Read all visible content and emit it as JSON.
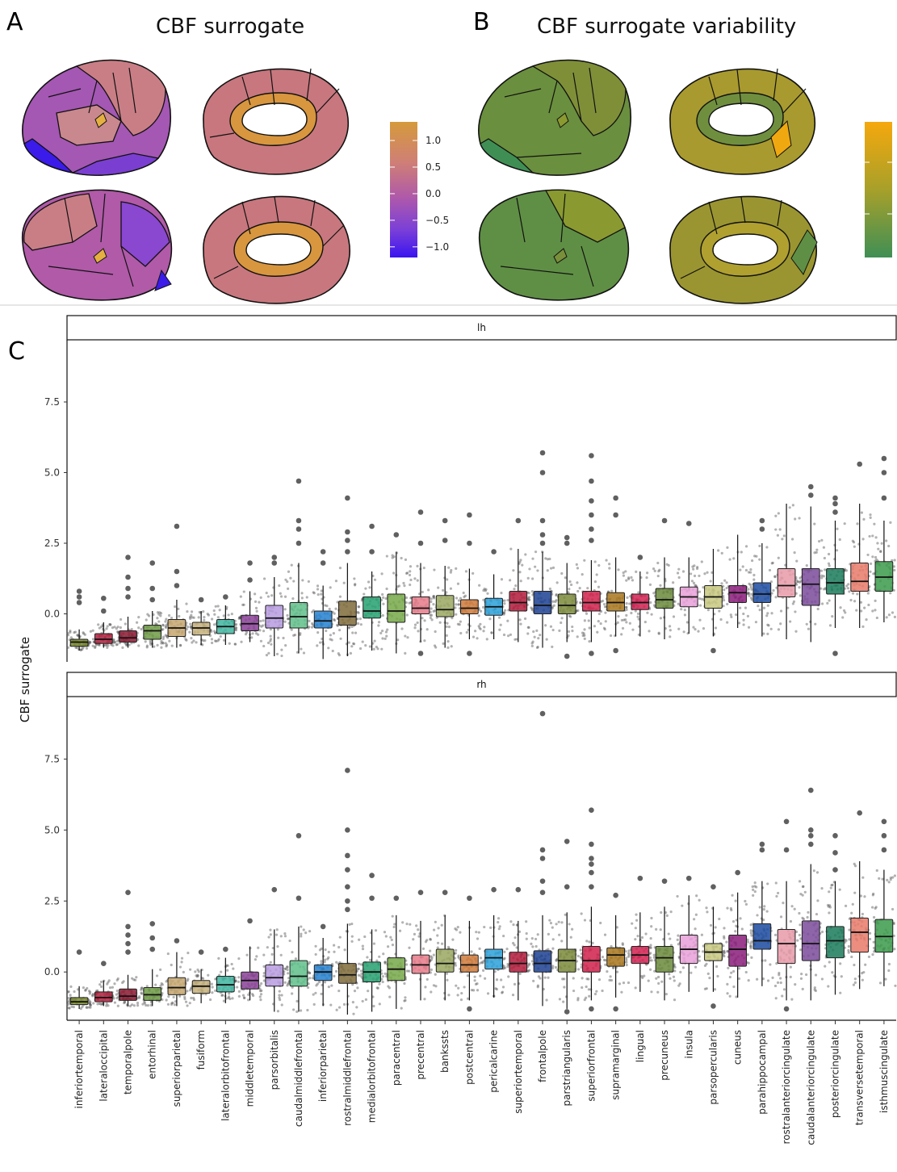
{
  "panels": {
    "A": {
      "letter": "A",
      "title": "CBF surrogate"
    },
    "B": {
      "letter": "B",
      "title": "CBF surrogate variability"
    },
    "C": {
      "letter": "C"
    }
  },
  "colorbars": {
    "A": {
      "ticks": [
        "1.0",
        "0.5",
        "0.0",
        "−0.5",
        "−1.0"
      ],
      "colors": [
        "#d59a3b",
        "#cf7f76",
        "#b05aa8",
        "#7a3fd8",
        "#3a14f0"
      ]
    },
    "B": {
      "ticks": [],
      "colors": [
        "#f5a80d",
        "#a7a02a",
        "#3f8f55"
      ]
    }
  },
  "chart_data": {
    "type": "box",
    "ylabel": "CBF surrogate",
    "yticks": [
      0.0,
      2.5,
      5.0,
      7.5
    ],
    "ytick_labels": [
      "0.0",
      "2.5",
      "5.0",
      "7.5"
    ],
    "ylim": [
      -1.7,
      9.7
    ],
    "categories": [
      "inferiortemporal",
      "lateraloccipital",
      "temporalpole",
      "entorhinal",
      "superiorparietal",
      "fusiform",
      "lateralorbitofrontal",
      "middletemporal",
      "parsorbitalis",
      "caudalmiddlefrontal",
      "inferiorparietal",
      "rostralmiddlefrontal",
      "medialorbitofrontal",
      "paracentral",
      "precentral",
      "bankssts",
      "postcentral",
      "pericalcarine",
      "superiortemporal",
      "frontalpole",
      "parstriangularis",
      "superiorfrontal",
      "supramarginal",
      "lingual",
      "precuneus",
      "insula",
      "parsopercularis",
      "cuneus",
      "parahippocampal",
      "rostralanteriorcingulate",
      "caudalanteriorcingulate",
      "posteriorcingulate",
      "transversetemporal",
      "isthmuscingulate"
    ],
    "colors": [
      "#7a8b2e",
      "#b01e3c",
      "#8a1830",
      "#6f9a45",
      "#c6a66e",
      "#c6b07a",
      "#3fb5a0",
      "#8a3f96",
      "#b79be0",
      "#5fc08a",
      "#2480d0",
      "#7f6a3a",
      "#24a070",
      "#76a848",
      "#e87a8a",
      "#9aa860",
      "#d07a3a",
      "#2aa0d8",
      "#b01a3a",
      "#1c3f90",
      "#7a8a3a",
      "#d0204a",
      "#a8761c",
      "#d02050",
      "#6a8a3a",
      "#e8a0d8",
      "#c8c880",
      "#8a1c7a",
      "#1a4aa0",
      "#e89aa8",
      "#7a4a9a",
      "#1a7a5a",
      "#e87a6a",
      "#3a9a4a"
    ],
    "panels": [
      {
        "strip": "lh",
        "boxes": [
          {
            "q1": -1.15,
            "med": -1.0,
            "q3": -0.9,
            "lo": -1.3,
            "hi": -0.55,
            "out": [
              0.8,
              0.6,
              0.4
            ]
          },
          {
            "q1": -1.05,
            "med": -0.9,
            "q3": -0.7,
            "lo": -1.2,
            "hi": -0.3,
            "out": [
              0.55,
              0.1
            ]
          },
          {
            "q1": -1.0,
            "med": -0.85,
            "q3": -0.6,
            "lo": -1.2,
            "hi": -0.1,
            "out": [
              2.0,
              1.3,
              0.9,
              0.6
            ]
          },
          {
            "q1": -0.9,
            "med": -0.6,
            "q3": -0.4,
            "lo": -1.2,
            "hi": 0.1,
            "out": [
              1.8,
              0.9,
              0.5
            ]
          },
          {
            "q1": -0.8,
            "med": -0.5,
            "q3": -0.2,
            "lo": -1.2,
            "hi": 0.5,
            "out": [
              3.1,
              1.5,
              1.0
            ]
          },
          {
            "q1": -0.75,
            "med": -0.5,
            "q3": -0.3,
            "lo": -1.1,
            "hi": 0.1,
            "out": [
              0.5
            ]
          },
          {
            "q1": -0.7,
            "med": -0.45,
            "q3": -0.2,
            "lo": -1.1,
            "hi": 0.3,
            "out": [
              0.6
            ]
          },
          {
            "q1": -0.6,
            "med": -0.35,
            "q3": -0.05,
            "lo": -1.0,
            "hi": 0.8,
            "out": [
              1.8,
              1.2
            ]
          },
          {
            "q1": -0.5,
            "med": -0.15,
            "q3": 0.3,
            "lo": -1.5,
            "hi": 1.3,
            "out": [
              2.0,
              1.8
            ]
          },
          {
            "q1": -0.5,
            "med": -0.1,
            "q3": 0.4,
            "lo": -1.4,
            "hi": 1.8,
            "out": [
              4.7,
              3.3,
              3.0,
              2.5
            ]
          },
          {
            "q1": -0.5,
            "med": -0.25,
            "q3": 0.1,
            "lo": -1.6,
            "hi": 1.0,
            "out": [
              2.2,
              1.8
            ]
          },
          {
            "q1": -0.4,
            "med": -0.1,
            "q3": 0.45,
            "lo": -1.5,
            "hi": 1.8,
            "out": [
              4.1,
              2.9,
              2.6,
              2.2
            ]
          },
          {
            "q1": -0.15,
            "med": 0.1,
            "q3": 0.6,
            "lo": -1.3,
            "hi": 1.5,
            "out": [
              3.1,
              2.2
            ]
          },
          {
            "q1": -0.3,
            "med": 0.1,
            "q3": 0.7,
            "lo": -1.4,
            "hi": 2.2,
            "out": [
              2.8
            ]
          },
          {
            "q1": 0.0,
            "med": 0.2,
            "q3": 0.6,
            "lo": -1.0,
            "hi": 1.8,
            "out": [
              3.6,
              2.5,
              -1.4
            ]
          },
          {
            "q1": -0.1,
            "med": 0.15,
            "q3": 0.65,
            "lo": -1.2,
            "hi": 1.7,
            "out": [
              3.3,
              2.6
            ]
          },
          {
            "q1": 0.0,
            "med": 0.2,
            "q3": 0.5,
            "lo": -0.9,
            "hi": 1.6,
            "out": [
              3.5,
              2.5,
              -1.4
            ]
          },
          {
            "q1": -0.05,
            "med": 0.25,
            "q3": 0.55,
            "lo": -0.9,
            "hi": 1.4,
            "out": [
              2.2
            ]
          },
          {
            "q1": 0.1,
            "med": 0.4,
            "q3": 0.8,
            "lo": -1.0,
            "hi": 2.3,
            "out": [
              3.3
            ]
          },
          {
            "q1": 0.0,
            "med": 0.3,
            "q3": 0.8,
            "lo": -1.2,
            "hi": 2.2,
            "out": [
              5.7,
              5.0,
              3.3,
              2.8,
              2.5
            ]
          },
          {
            "q1": 0.0,
            "med": 0.3,
            "q3": 0.7,
            "lo": -1.0,
            "hi": 1.8,
            "out": [
              2.7,
              2.5,
              -1.5
            ]
          },
          {
            "q1": 0.1,
            "med": 0.4,
            "q3": 0.8,
            "lo": -1.0,
            "hi": 1.9,
            "out": [
              5.6,
              4.7,
              4.0,
              3.5,
              3.0,
              2.6,
              -1.4
            ]
          },
          {
            "q1": 0.1,
            "med": 0.4,
            "q3": 0.75,
            "lo": -0.8,
            "hi": 2.0,
            "out": [
              4.1,
              3.5,
              -1.3
            ]
          },
          {
            "q1": 0.15,
            "med": 0.4,
            "q3": 0.7,
            "lo": -0.8,
            "hi": 1.5,
            "out": [
              2.0
            ]
          },
          {
            "q1": 0.2,
            "med": 0.5,
            "q3": 0.9,
            "lo": -0.9,
            "hi": 2.0,
            "out": [
              3.3
            ]
          },
          {
            "q1": 0.25,
            "med": 0.6,
            "q3": 0.95,
            "lo": -0.7,
            "hi": 2.0,
            "out": [
              3.2
            ]
          },
          {
            "q1": 0.2,
            "med": 0.6,
            "q3": 1.0,
            "lo": -0.8,
            "hi": 2.3,
            "out": [
              -1.3
            ]
          },
          {
            "q1": 0.4,
            "med": 0.75,
            "q3": 1.0,
            "lo": -0.5,
            "hi": 2.8,
            "out": []
          },
          {
            "q1": 0.4,
            "med": 0.7,
            "q3": 1.1,
            "lo": -0.8,
            "hi": 2.5,
            "out": [
              3.3,
              3.0
            ]
          },
          {
            "q1": 0.6,
            "med": 1.0,
            "q3": 1.6,
            "lo": -0.9,
            "hi": 3.9,
            "out": []
          },
          {
            "q1": 0.3,
            "med": 1.05,
            "q3": 1.6,
            "lo": -1.0,
            "hi": 3.8,
            "out": [
              4.5,
              4.2
            ]
          },
          {
            "q1": 0.7,
            "med": 1.1,
            "q3": 1.6,
            "lo": -0.5,
            "hi": 3.3,
            "out": [
              4.1,
              3.9,
              3.6,
              -1.4
            ]
          },
          {
            "q1": 0.8,
            "med": 1.15,
            "q3": 1.8,
            "lo": -0.5,
            "hi": 3.9,
            "out": [
              5.3
            ]
          },
          {
            "q1": 0.8,
            "med": 1.3,
            "q3": 1.85,
            "lo": -0.3,
            "hi": 3.3,
            "out": [
              5.5,
              5.0,
              4.1
            ]
          }
        ]
      },
      {
        "strip": "rh",
        "boxes": [
          {
            "q1": -1.15,
            "med": -1.05,
            "q3": -0.9,
            "lo": -1.3,
            "hi": -0.5,
            "out": [
              0.7
            ]
          },
          {
            "q1": -1.05,
            "med": -0.9,
            "q3": -0.7,
            "lo": -1.2,
            "hi": -0.3,
            "out": [
              0.3
            ]
          },
          {
            "q1": -1.0,
            "med": -0.85,
            "q3": -0.6,
            "lo": -1.2,
            "hi": -0.1,
            "out": [
              2.8,
              1.6,
              1.3,
              1.0,
              0.7
            ]
          },
          {
            "q1": -1.0,
            "med": -0.8,
            "q3": -0.55,
            "lo": -1.2,
            "hi": 0.1,
            "out": [
              1.7,
              1.2,
              0.8
            ]
          },
          {
            "q1": -0.8,
            "med": -0.55,
            "q3": -0.2,
            "lo": -1.2,
            "hi": 0.7,
            "out": [
              1.1
            ]
          },
          {
            "q1": -0.75,
            "med": -0.5,
            "q3": -0.3,
            "lo": -1.1,
            "hi": 0.1,
            "out": [
              0.7
            ]
          },
          {
            "q1": -0.7,
            "med": -0.45,
            "q3": -0.15,
            "lo": -1.1,
            "hi": 0.5,
            "out": [
              0.8
            ]
          },
          {
            "q1": -0.6,
            "med": -0.3,
            "q3": 0.0,
            "lo": -1.0,
            "hi": 0.9,
            "out": [
              1.8
            ]
          },
          {
            "q1": -0.5,
            "med": -0.2,
            "q3": 0.25,
            "lo": -1.4,
            "hi": 1.5,
            "out": [
              2.9
            ]
          },
          {
            "q1": -0.5,
            "med": -0.15,
            "q3": 0.4,
            "lo": -1.4,
            "hi": 1.6,
            "out": [
              4.8,
              2.6
            ]
          },
          {
            "q1": -0.3,
            "med": 0.0,
            "q3": 0.25,
            "lo": -1.2,
            "hi": 1.2,
            "out": [
              1.6
            ]
          },
          {
            "q1": -0.4,
            "med": -0.1,
            "q3": 0.3,
            "lo": -1.5,
            "hi": 1.7,
            "out": [
              7.1,
              5.0,
              4.1,
              3.6,
              3.0,
              2.5,
              2.2
            ]
          },
          {
            "q1": -0.35,
            "med": 0.0,
            "q3": 0.35,
            "lo": -1.4,
            "hi": 1.5,
            "out": [
              3.4,
              2.6
            ]
          },
          {
            "q1": -0.3,
            "med": 0.1,
            "q3": 0.5,
            "lo": -1.3,
            "hi": 2.0,
            "out": [
              2.6
            ]
          },
          {
            "q1": -0.05,
            "med": 0.25,
            "q3": 0.6,
            "lo": -1.0,
            "hi": 1.8,
            "out": [
              2.8
            ]
          },
          {
            "q1": 0.0,
            "med": 0.3,
            "q3": 0.8,
            "lo": -1.0,
            "hi": 2.0,
            "out": [
              2.8
            ]
          },
          {
            "q1": 0.0,
            "med": 0.25,
            "q3": 0.6,
            "lo": -1.0,
            "hi": 1.8,
            "out": [
              2.6,
              -1.3
            ]
          },
          {
            "q1": 0.1,
            "med": 0.5,
            "q3": 0.8,
            "lo": -0.9,
            "hi": 2.0,
            "out": [
              2.9
            ]
          },
          {
            "q1": 0.0,
            "med": 0.3,
            "q3": 0.7,
            "lo": -1.0,
            "hi": 1.8,
            "out": [
              2.9
            ]
          },
          {
            "q1": 0.0,
            "med": 0.3,
            "q3": 0.75,
            "lo": -1.2,
            "hi": 2.0,
            "out": [
              9.1,
              4.3,
              4.0,
              3.2,
              2.8
            ]
          },
          {
            "q1": 0.0,
            "med": 0.4,
            "q3": 0.8,
            "lo": -1.3,
            "hi": 2.1,
            "out": [
              4.6,
              3.0,
              -1.4
            ]
          },
          {
            "q1": 0.0,
            "med": 0.4,
            "q3": 0.9,
            "lo": -1.0,
            "hi": 2.3,
            "out": [
              5.7,
              4.5,
              4.0,
              3.8,
              3.5,
              3.0,
              -1.3
            ]
          },
          {
            "q1": 0.2,
            "med": 0.6,
            "q3": 0.85,
            "lo": -0.9,
            "hi": 2.0,
            "out": [
              2.7,
              -1.3
            ]
          },
          {
            "q1": 0.3,
            "med": 0.6,
            "q3": 0.9,
            "lo": -0.7,
            "hi": 2.1,
            "out": [
              3.3
            ]
          },
          {
            "q1": 0.0,
            "med": 0.5,
            "q3": 0.9,
            "lo": -1.0,
            "hi": 2.3,
            "out": [
              3.2
            ]
          },
          {
            "q1": 0.3,
            "med": 0.8,
            "q3": 1.3,
            "lo": -0.7,
            "hi": 2.7,
            "out": [
              3.3
            ]
          },
          {
            "q1": 0.4,
            "med": 0.7,
            "q3": 1.0,
            "lo": -0.7,
            "hi": 2.3,
            "out": [
              3.0,
              -1.2
            ]
          },
          {
            "q1": 0.2,
            "med": 0.8,
            "q3": 1.3,
            "lo": -0.9,
            "hi": 2.8,
            "out": [
              3.5
            ]
          },
          {
            "q1": 0.8,
            "med": 1.1,
            "q3": 1.7,
            "lo": -0.5,
            "hi": 3.2,
            "out": [
              4.5,
              4.3
            ]
          },
          {
            "q1": 0.3,
            "med": 1.0,
            "q3": 1.5,
            "lo": -1.0,
            "hi": 3.2,
            "out": [
              5.3,
              4.3,
              -1.3
            ]
          },
          {
            "q1": 0.4,
            "med": 1.0,
            "q3": 1.8,
            "lo": -1.0,
            "hi": 3.8,
            "out": [
              6.4,
              5.0,
              4.8,
              4.5
            ]
          },
          {
            "q1": 0.5,
            "med": 1.1,
            "q3": 1.6,
            "lo": -0.8,
            "hi": 3.2,
            "out": [
              4.8,
              4.2,
              3.6
            ]
          },
          {
            "q1": 0.7,
            "med": 1.4,
            "q3": 1.9,
            "lo": -0.6,
            "hi": 3.9,
            "out": [
              5.6
            ]
          },
          {
            "q1": 0.7,
            "med": 1.25,
            "q3": 1.85,
            "lo": -0.5,
            "hi": 3.6,
            "out": [
              5.3,
              4.8,
              4.3
            ]
          }
        ]
      }
    ]
  }
}
